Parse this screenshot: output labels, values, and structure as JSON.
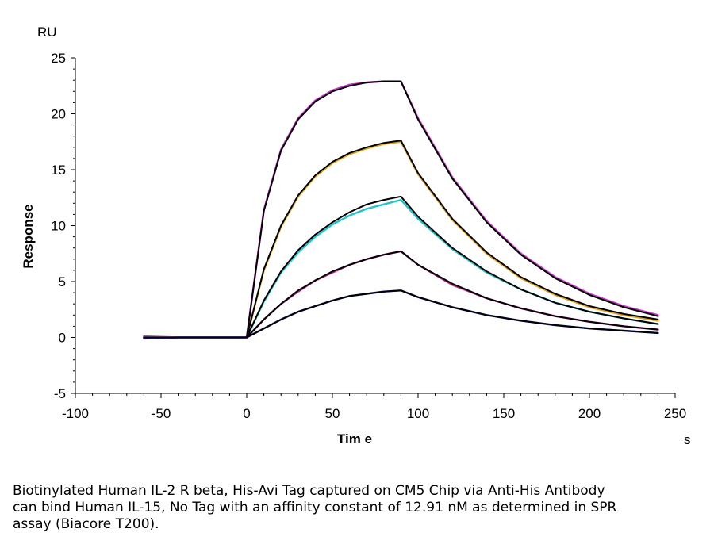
{
  "chart_data": {
    "type": "line",
    "xlabel": "Tim e",
    "ylabel": "Response",
    "x_unit": "s",
    "y_unit": "RU",
    "xlim": [
      -100,
      250
    ],
    "ylim": [
      -5,
      25
    ],
    "x_ticks": [
      -100,
      -50,
      0,
      50,
      100,
      150,
      200,
      250
    ],
    "y_ticks": [
      -5,
      0,
      5,
      10,
      15,
      20,
      25
    ],
    "x_tick_labels": [
      "-100",
      "-50",
      "0",
      "50",
      "100",
      "150",
      "200",
      "250"
    ],
    "y_tick_labels": [
      "-5",
      "0",
      "5",
      "10",
      "15",
      "20",
      "25"
    ],
    "grid": false,
    "legend": "none",
    "series": [
      {
        "color": "#cc33cc",
        "x": [
          -60,
          -40,
          -20,
          0,
          10,
          20,
          30,
          40,
          50,
          60,
          70,
          80,
          90,
          100,
          120,
          140,
          160,
          180,
          200,
          220,
          240
        ],
        "y": [
          0.1,
          0,
          0,
          0,
          11.4,
          16.8,
          19.6,
          21.2,
          22.1,
          22.6,
          22.8,
          22.9,
          22.9,
          19.6,
          14.3,
          10.4,
          7.5,
          5.4,
          3.9,
          2.8,
          2.0
        ]
      },
      {
        "color": "#e3a31a",
        "x": [
          -60,
          -40,
          -20,
          0,
          10,
          20,
          30,
          40,
          50,
          60,
          70,
          80,
          90,
          100,
          120,
          140,
          160,
          180,
          200,
          220,
          240
        ],
        "y": [
          0,
          0,
          0,
          0,
          6.0,
          9.9,
          12.6,
          14.4,
          15.6,
          16.4,
          16.9,
          17.3,
          17.5,
          14.6,
          10.5,
          7.5,
          5.3,
          3.8,
          2.7,
          2.0,
          1.5
        ]
      },
      {
        "color": "#22c4cc",
        "x": [
          -60,
          -40,
          -20,
          0,
          10,
          20,
          30,
          40,
          50,
          60,
          70,
          80,
          90,
          100,
          120,
          140,
          160,
          180,
          200,
          220,
          240
        ],
        "y": [
          0,
          0,
          0,
          0,
          3.2,
          5.8,
          7.6,
          9.0,
          10.1,
          10.9,
          11.5,
          11.9,
          12.3,
          10.6,
          7.9,
          5.8,
          4.3,
          3.1,
          2.3,
          1.7,
          1.2
        ]
      },
      {
        "color": "#bb2288",
        "x": [
          -60,
          -40,
          -20,
          0,
          10,
          20,
          30,
          40,
          50,
          60,
          70,
          80,
          90,
          100,
          120,
          140,
          160,
          180,
          200,
          220,
          240
        ],
        "y": [
          0,
          0,
          0,
          0,
          1.6,
          3.0,
          4.1,
          5.1,
          5.8,
          6.5,
          7.0,
          7.4,
          7.7,
          6.5,
          4.7,
          3.5,
          2.6,
          1.9,
          1.4,
          1.0,
          0.7
        ]
      },
      {
        "color": "#1a2a99",
        "x": [
          -60,
          -40,
          -20,
          0,
          10,
          20,
          30,
          40,
          50,
          60,
          70,
          80,
          90,
          100,
          120,
          140,
          160,
          180,
          200,
          220,
          240
        ],
        "y": [
          -0.1,
          0,
          0,
          0,
          0.8,
          1.6,
          2.3,
          2.8,
          3.3,
          3.7,
          3.9,
          4.1,
          4.2,
          3.6,
          2.7,
          2.0,
          1.5,
          1.1,
          0.8,
          0.6,
          0.4
        ]
      },
      {
        "color": "#000000",
        "x": [
          -60,
          -40,
          -20,
          0,
          10,
          20,
          30,
          40,
          50,
          60,
          70,
          80,
          90,
          100,
          120,
          140,
          160,
          180,
          200,
          220,
          240
        ],
        "y": [
          0,
          0,
          0,
          0,
          11.3,
          16.7,
          19.5,
          21.1,
          22.0,
          22.5,
          22.8,
          22.9,
          22.9,
          19.5,
          14.2,
          10.3,
          7.4,
          5.3,
          3.8,
          2.7,
          1.9
        ]
      },
      {
        "color": "#000000",
        "x": [
          -60,
          -40,
          -20,
          0,
          10,
          20,
          30,
          40,
          50,
          60,
          70,
          80,
          90,
          100,
          120,
          140,
          160,
          180,
          200,
          220,
          240
        ],
        "y": [
          0,
          0,
          0,
          0,
          6.1,
          10.0,
          12.7,
          14.5,
          15.7,
          16.5,
          17.0,
          17.4,
          17.6,
          14.7,
          10.6,
          7.6,
          5.4,
          3.9,
          2.8,
          2.1,
          1.6
        ]
      },
      {
        "color": "#000000",
        "x": [
          -60,
          -40,
          -20,
          0,
          10,
          20,
          30,
          40,
          50,
          60,
          70,
          80,
          90,
          100,
          120,
          140,
          160,
          180,
          200,
          220,
          240
        ],
        "y": [
          0,
          0,
          0,
          0,
          3.3,
          5.9,
          7.8,
          9.2,
          10.3,
          11.2,
          11.9,
          12.3,
          12.6,
          10.8,
          8.0,
          5.9,
          4.3,
          3.1,
          2.3,
          1.7,
          1.2
        ]
      },
      {
        "color": "#000000",
        "x": [
          -60,
          -40,
          -20,
          0,
          10,
          20,
          30,
          40,
          50,
          60,
          70,
          80,
          90,
          100,
          120,
          140,
          160,
          180,
          200,
          220,
          240
        ],
        "y": [
          0,
          0,
          0,
          0,
          1.6,
          3.0,
          4.2,
          5.1,
          5.9,
          6.5,
          7.0,
          7.4,
          7.7,
          6.5,
          4.8,
          3.5,
          2.6,
          1.9,
          1.4,
          1.0,
          0.7
        ]
      },
      {
        "color": "#000000",
        "x": [
          -60,
          -40,
          -20,
          0,
          10,
          20,
          30,
          40,
          50,
          60,
          70,
          80,
          90,
          100,
          120,
          140,
          160,
          180,
          200,
          220,
          240
        ],
        "y": [
          0,
          0,
          0,
          0,
          0.8,
          1.6,
          2.3,
          2.8,
          3.3,
          3.7,
          3.9,
          4.1,
          4.2,
          3.6,
          2.7,
          2.0,
          1.5,
          1.1,
          0.8,
          0.6,
          0.4
        ]
      }
    ]
  },
  "caption": "Biotinylated Human IL-2 R beta, His-Avi Tag captured on CM5 Chip via Anti-His Antibody\ncan bind Human IL-15, No Tag with an affinity constant of 12.91 nM as determined in SPR\nassay (Biacore T200)."
}
